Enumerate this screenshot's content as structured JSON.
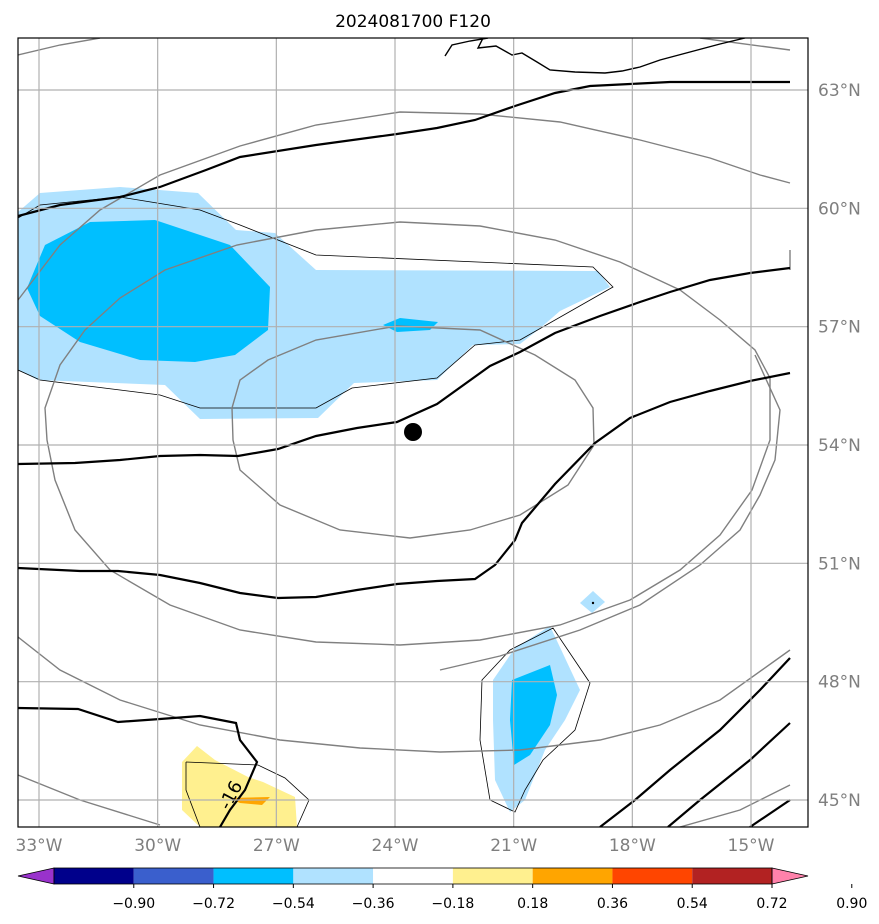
{
  "title": "2024081700 F120",
  "map": {
    "type": "contour-map",
    "extent": {
      "lon": [
        -33.5,
        -13.6
      ],
      "lat": [
        44.3,
        64.5
      ]
    },
    "grid": true,
    "center_marker": {
      "lon": -23.6,
      "lat": 54.3
    },
    "longitude_ticks": [
      {
        "lon": -33,
        "label": "33°W"
      },
      {
        "lon": -30,
        "label": "30°W"
      },
      {
        "lon": -27,
        "label": "27°W"
      },
      {
        "lon": -24,
        "label": "24°W"
      },
      {
        "lon": -21,
        "label": "21°W"
      },
      {
        "lon": -18,
        "label": "18°W"
      },
      {
        "lon": -15,
        "label": "15°W"
      }
    ],
    "latitude_ticks": [
      {
        "lat": 63,
        "label": "63°N"
      },
      {
        "lat": 60,
        "label": "60°N"
      },
      {
        "lat": 57,
        "label": "57°N"
      },
      {
        "lat": 54,
        "label": "54°N"
      },
      {
        "lat": 51,
        "label": "51°N"
      },
      {
        "lat": 48,
        "label": "48°N"
      },
      {
        "lat": 45,
        "label": "45°N"
      }
    ],
    "contour_label": "-16"
  },
  "colorbar": {
    "levels": [
      "−0.90",
      "−0.72",
      "−0.54",
      "−0.36",
      "−0.18",
      "0.18",
      "0.36",
      "0.54",
      "0.72",
      "0.90"
    ],
    "colors": [
      "#9932cc",
      "#00008b",
      "#3a5fcd",
      "#00bfff",
      "#b0e2ff",
      "#ffffff",
      "#fff08f",
      "#ffa500",
      "#ff4500",
      "#b22222",
      "#ff82ab"
    ],
    "extend": "both"
  },
  "colors": {
    "light_blue": "#b0e2ff",
    "deep_sky_blue": "#00bfff",
    "light_yellow": "#fff08f",
    "orange": "#ffa500",
    "grid": "#b0b0b0",
    "gray_contour": "#808080",
    "black_contour": "#000000"
  }
}
